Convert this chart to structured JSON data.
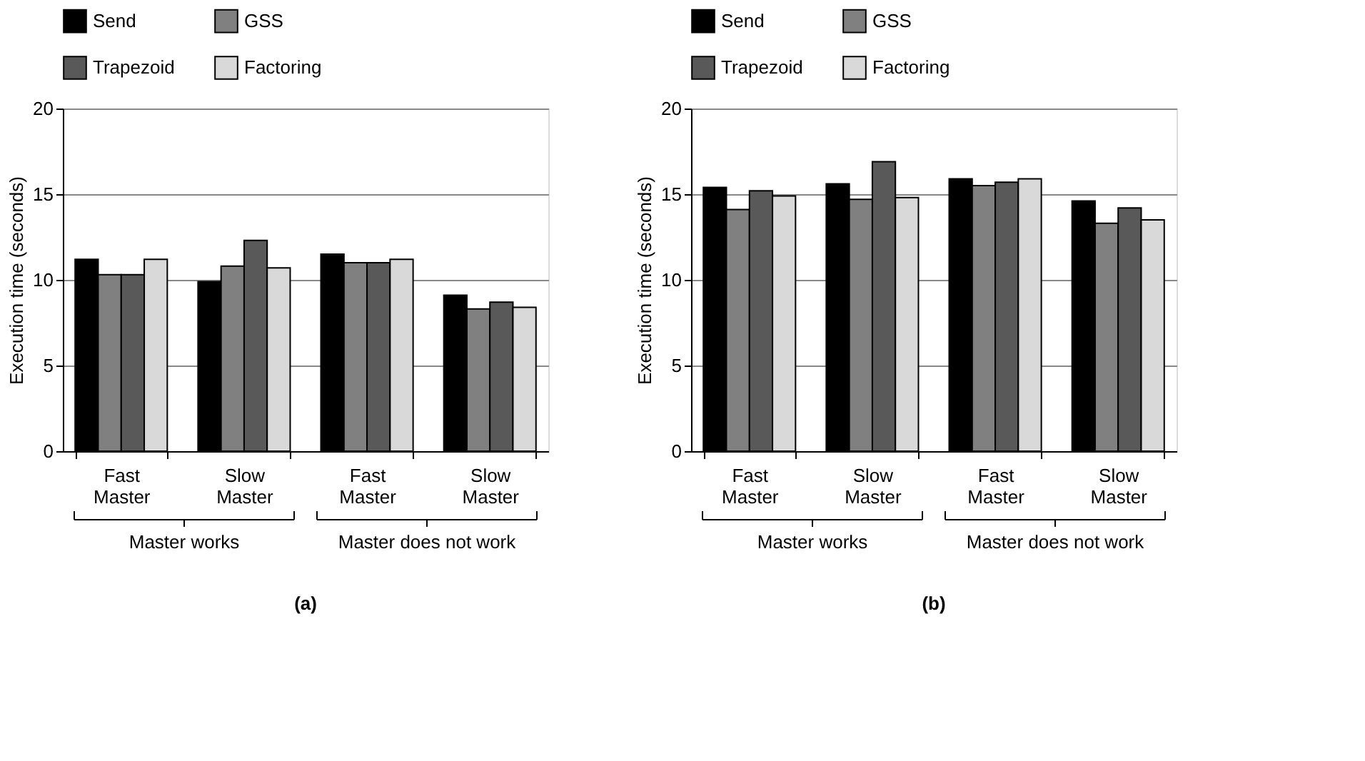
{
  "chart_data": [
    {
      "type": "bar",
      "title": "(a)",
      "ylabel": "Execution time (seconds)",
      "categories": [
        "Fast Master",
        "Slow Master",
        "Fast Master",
        "Slow Master"
      ],
      "series": [
        {
          "name": "Send",
          "color": "#000000",
          "values": [
            11.2,
            9.9,
            11.5,
            9.1
          ]
        },
        {
          "name": "GSS",
          "color": "#808080",
          "values": [
            10.3,
            10.8,
            11.0,
            8.3
          ]
        },
        {
          "name": "Trapezoid",
          "color": "#595959",
          "values": [
            10.3,
            12.3,
            11.0,
            8.7
          ]
        },
        {
          "name": "Factoring",
          "color": "#d9d9d9",
          "values": [
            11.2,
            10.7,
            11.2,
            8.4
          ]
        }
      ],
      "ylim": [
        0,
        20
      ],
      "yticks": [
        0,
        5,
        10,
        15,
        20
      ],
      "grid": "y",
      "legend": "top",
      "annotations": [
        "Master works",
        "Master does not work"
      ]
    },
    {
      "type": "bar",
      "title": "(b)",
      "ylabel": "Execution time (seconds)",
      "categories": [
        "Fast Master",
        "Slow Master",
        "Fast Master",
        "Slow Master"
      ],
      "series": [
        {
          "name": "Send",
          "color": "#000000",
          "values": [
            15.4,
            15.6,
            15.9,
            14.6
          ]
        },
        {
          "name": "GSS",
          "color": "#808080",
          "values": [
            14.1,
            14.7,
            15.5,
            13.3
          ]
        },
        {
          "name": "Trapezoid",
          "color": "#595959",
          "values": [
            15.2,
            16.9,
            15.7,
            14.2
          ]
        },
        {
          "name": "Factoring",
          "color": "#d9d9d9",
          "values": [
            14.9,
            14.8,
            15.9,
            13.5
          ]
        }
      ],
      "ylim": [
        0,
        20
      ],
      "yticks": [
        0,
        5,
        10,
        15,
        20
      ],
      "grid": "y",
      "legend": "top",
      "annotations": [
        "Master works",
        "Master does not work"
      ]
    }
  ]
}
